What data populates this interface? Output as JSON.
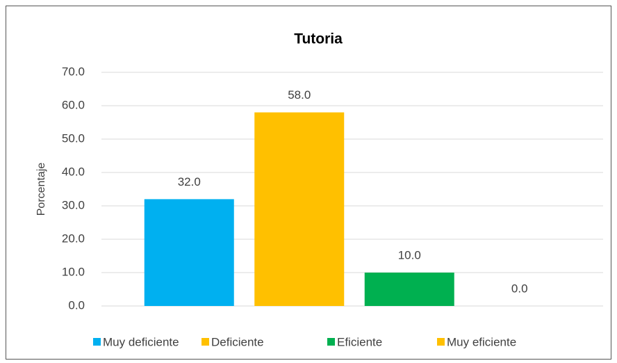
{
  "chart_data": {
    "type": "bar",
    "title": "Tutoria",
    "y_label": "Porcentaje",
    "categories": [
      "Muy deficiente",
      "Deficiente",
      "Eficiente",
      "Muy eficiente"
    ],
    "values": [
      32,
      58,
      10,
      0
    ],
    "value_labels": [
      "32.0",
      "58.0",
      "10.0",
      "0.0"
    ],
    "colors": [
      "#00b0f0",
      "#ffc000",
      "#00b050",
      "#ffc000"
    ],
    "ylim": [
      0,
      70
    ],
    "yticks": [
      {
        "value": 0,
        "label": "0.0"
      },
      {
        "value": 10,
        "label": "10.0"
      },
      {
        "value": 20,
        "label": "20.0"
      },
      {
        "value": 30,
        "label": "30.0"
      },
      {
        "value": 40,
        "label": "40.0"
      },
      {
        "value": 50,
        "label": "50.0"
      },
      {
        "value": 60,
        "label": "60.0"
      },
      {
        "value": 70,
        "label": "70.0"
      }
    ],
    "grid": true,
    "legend": "bottom"
  }
}
